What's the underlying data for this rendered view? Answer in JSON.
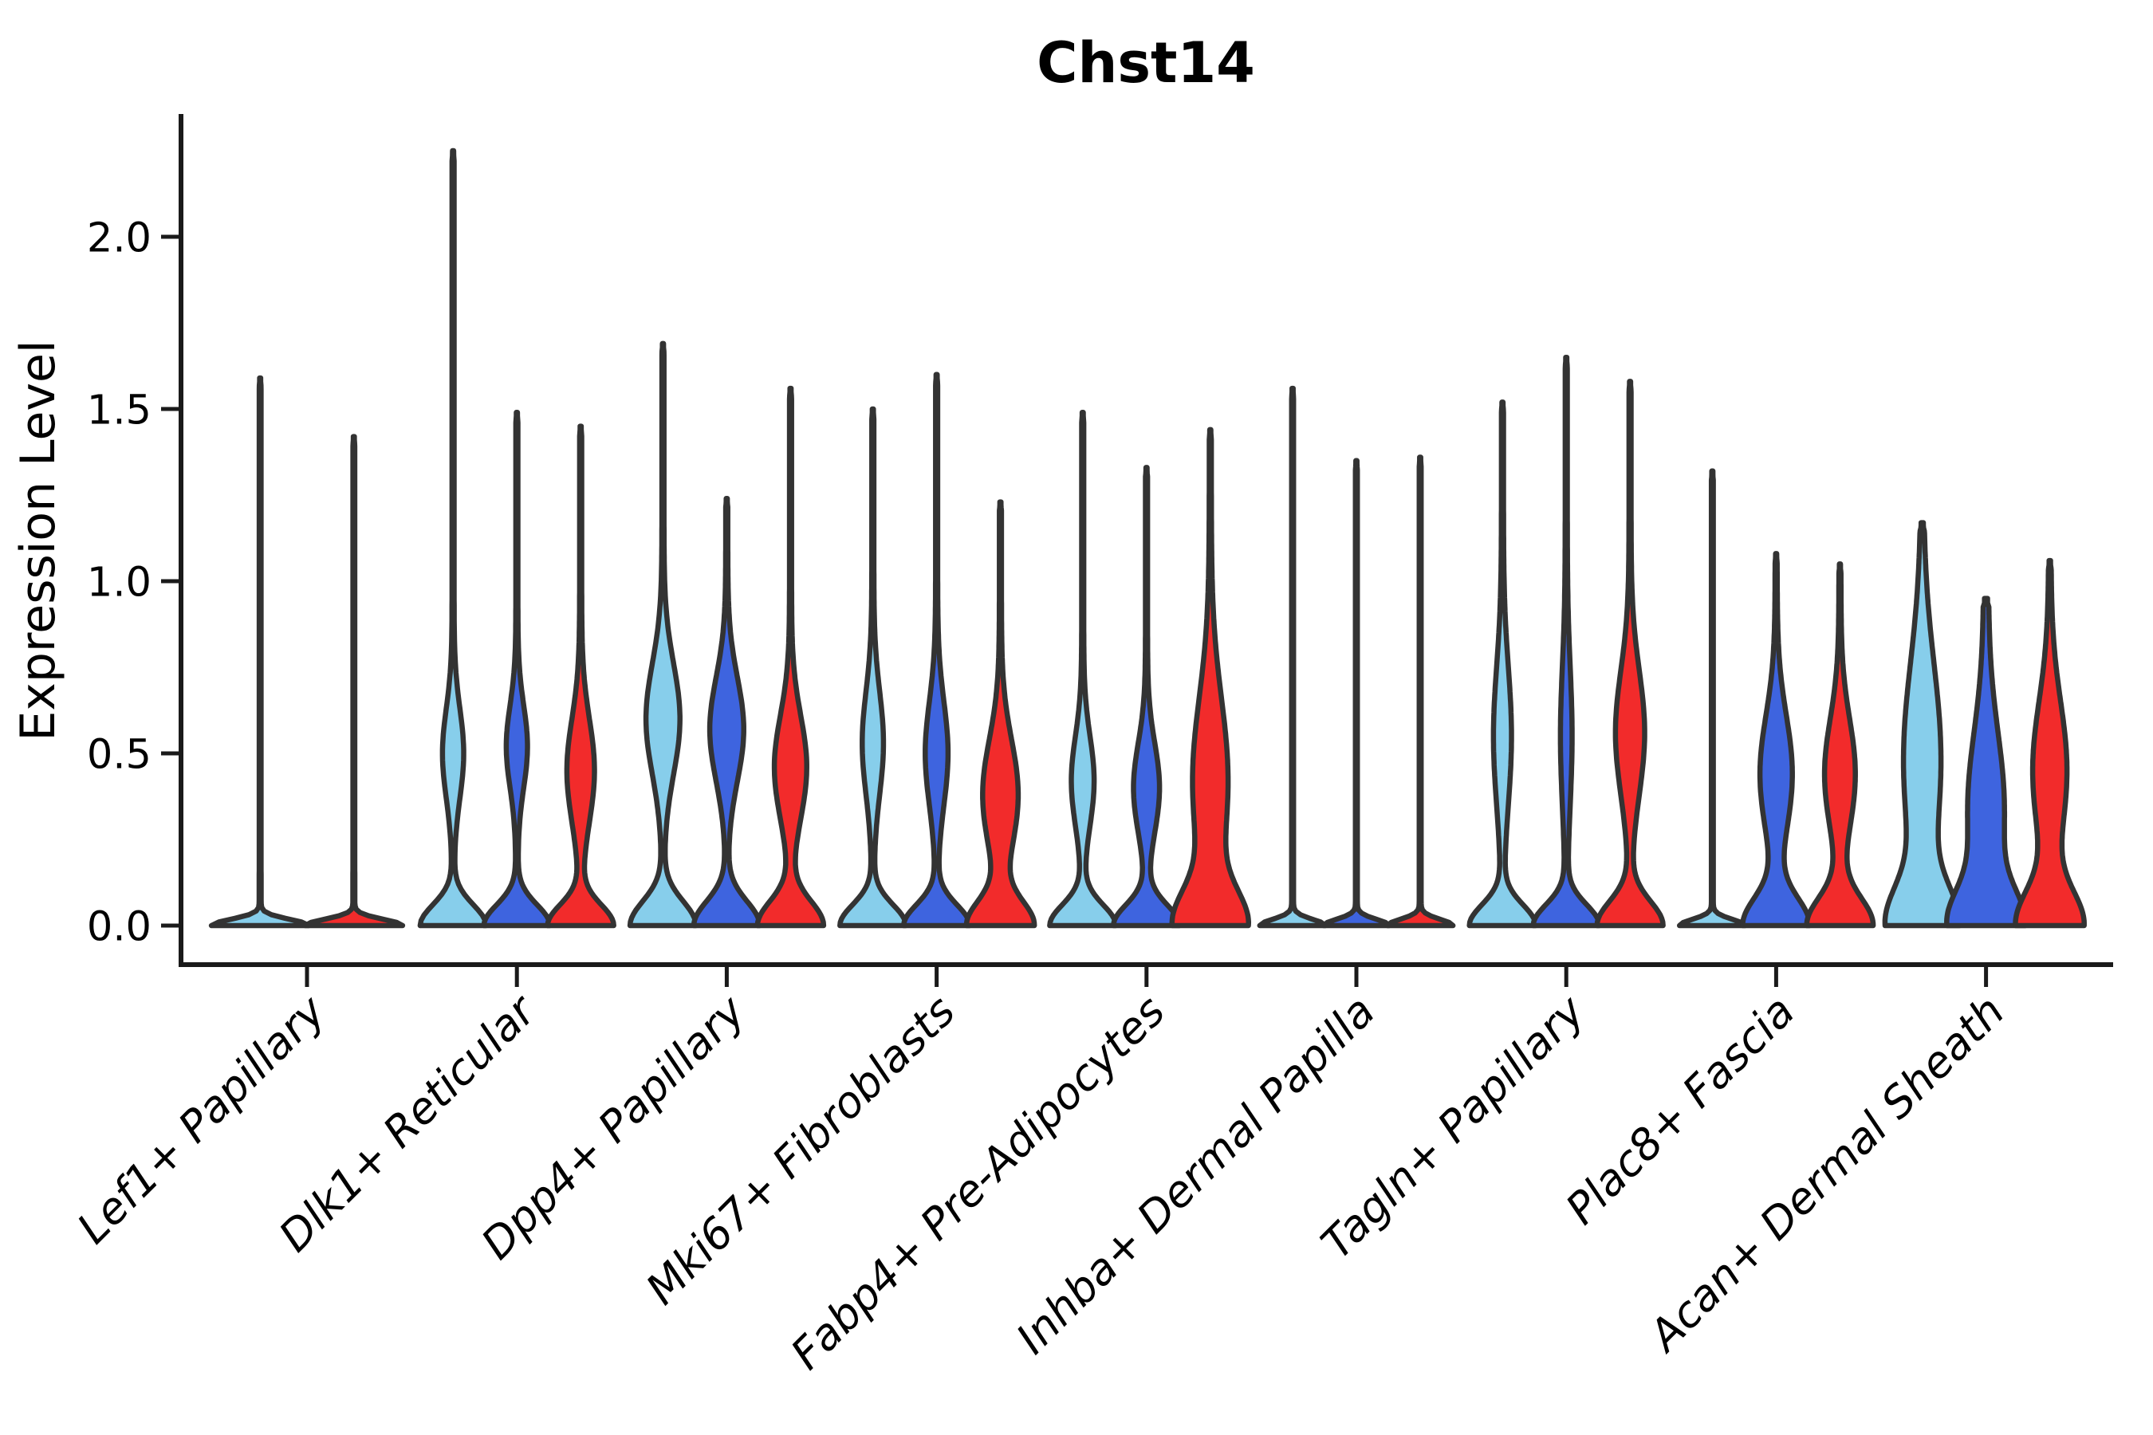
{
  "chart_data": {
    "type": "violin",
    "title": "Chst14",
    "xlabel": "",
    "ylabel": "Expression Level",
    "ylim": [
      -0.11,
      2.36
    ],
    "yticks": [
      0.0,
      0.5,
      1.0,
      1.5,
      2.0
    ],
    "ytick_labels": [
      "0.0",
      "0.5",
      "1.0",
      "1.5",
      "2.0"
    ],
    "grid": "off",
    "legend": "none",
    "axis_color": "#1a1a1a",
    "outline_color": "#333333",
    "background_color": "#ffffff",
    "categories": [
      "Lef1+ Papillary",
      "Dlk1+ Reticular",
      "Dpp4+ Papillary",
      "Mki67+ Fibroblasts",
      "Fabp4+ Pre-Adipocytes",
      "Inhba+ Dermal Papilla",
      "Tagln+ Papillary",
      "Plac8+ Fascia",
      "Acan+ Dermal Sheath"
    ],
    "series": [
      {
        "id": "light-blue",
        "color": "#87CEEB"
      },
      {
        "id": "dark-blue",
        "color": "#3E64DF"
      },
      {
        "id": "red",
        "color": "#F22B2B"
      }
    ],
    "groups": [
      {
        "category": "Lef1+ Papillary",
        "violins": [
          {
            "series": "light-blue",
            "max": 1.59,
            "offset": -58.75,
            "base_hw": 60,
            "base_sigma": 0.018,
            "tail_hw": 1.2,
            "bulge": null
          },
          {
            "series": "red",
            "max": 1.42,
            "offset": 58.75,
            "base_hw": 60,
            "base_sigma": 0.018,
            "tail_hw": 1.2,
            "bulge": null
          }
        ]
      },
      {
        "category": "Dlk1+ Reticular",
        "violins": [
          {
            "series": "light-blue",
            "max": 2.25,
            "offset": -80,
            "base_hw": 40,
            "base_sigma": 0.06,
            "tail_hw": 1.3,
            "bulge": {
              "mu": 0.5,
              "sigma": 0.13,
              "hw": 12
            }
          },
          {
            "series": "dark-blue",
            "max": 1.49,
            "offset": 0,
            "base_hw": 40,
            "base_sigma": 0.06,
            "tail_hw": 1.3,
            "bulge": {
              "mu": 0.52,
              "sigma": 0.12,
              "hw": 12
            }
          },
          {
            "series": "red",
            "max": 1.45,
            "offset": 80,
            "base_hw": 40,
            "base_sigma": 0.06,
            "tail_hw": 1.3,
            "bulge": {
              "mu": 0.45,
              "sigma": 0.15,
              "hw": 16
            }
          }
        ]
      },
      {
        "category": "Dpp4+ Papillary",
        "violins": [
          {
            "series": "light-blue",
            "max": 1.69,
            "offset": -80,
            "base_hw": 40,
            "base_sigma": 0.07,
            "tail_hw": 1.3,
            "bulge": {
              "mu": 0.6,
              "sigma": 0.16,
              "hw": 20
            }
          },
          {
            "series": "dark-blue",
            "max": 1.24,
            "offset": 0,
            "base_hw": 40,
            "base_sigma": 0.07,
            "tail_hw": 1.3,
            "bulge": {
              "mu": 0.57,
              "sigma": 0.15,
              "hw": 20
            }
          },
          {
            "series": "red",
            "max": 1.56,
            "offset": 80,
            "base_hw": 40,
            "base_sigma": 0.07,
            "tail_hw": 1.3,
            "bulge": {
              "mu": 0.46,
              "sigma": 0.15,
              "hw": 19
            }
          }
        ]
      },
      {
        "category": "Mki67+ Fibroblasts",
        "violins": [
          {
            "series": "light-blue",
            "max": 1.5,
            "offset": -80,
            "base_hw": 40,
            "base_sigma": 0.06,
            "tail_hw": 1.3,
            "bulge": {
              "mu": 0.53,
              "sigma": 0.15,
              "hw": 12
            }
          },
          {
            "series": "dark-blue",
            "max": 1.6,
            "offset": 0,
            "base_hw": 40,
            "base_sigma": 0.06,
            "tail_hw": 1.3,
            "bulge": {
              "mu": 0.5,
              "sigma": 0.15,
              "hw": 13
            }
          },
          {
            "series": "red",
            "max": 1.23,
            "offset": 80,
            "base_hw": 40,
            "base_sigma": 0.07,
            "tail_hw": 1.3,
            "bulge": {
              "mu": 0.38,
              "sigma": 0.16,
              "hw": 21
            }
          }
        ]
      },
      {
        "category": "Fabp4+ Pre-Adipocytes",
        "violins": [
          {
            "series": "light-blue",
            "max": 1.49,
            "offset": -80,
            "base_hw": 40,
            "base_sigma": 0.06,
            "tail_hw": 1.3,
            "bulge": {
              "mu": 0.42,
              "sigma": 0.13,
              "hw": 13
            }
          },
          {
            "series": "dark-blue",
            "max": 1.33,
            "offset": 0,
            "base_hw": 40,
            "base_sigma": 0.06,
            "tail_hw": 1.3,
            "bulge": {
              "mu": 0.4,
              "sigma": 0.13,
              "hw": 15
            }
          },
          {
            "series": "red",
            "max": 1.44,
            "offset": 80,
            "base_hw": 42,
            "base_sigma": 0.1,
            "tail_hw": 1.3,
            "bulge": {
              "mu": 0.42,
              "sigma": 0.24,
              "hw": 21
            }
          }
        ]
      },
      {
        "category": "Inhba+ Dermal Papilla",
        "violins": [
          {
            "series": "light-blue",
            "max": 1.56,
            "offset": -80,
            "base_hw": 40,
            "base_sigma": 0.018,
            "tail_hw": 1.2,
            "bulge": null
          },
          {
            "series": "dark-blue",
            "max": 1.35,
            "offset": 0,
            "base_hw": 40,
            "base_sigma": 0.018,
            "tail_hw": 1.2,
            "bulge": null
          },
          {
            "series": "red",
            "max": 1.36,
            "offset": 80,
            "base_hw": 40,
            "base_sigma": 0.018,
            "tail_hw": 1.2,
            "bulge": null
          }
        ]
      },
      {
        "category": "Tagln+ Papillary",
        "violins": [
          {
            "series": "light-blue",
            "max": 1.52,
            "offset": -80,
            "base_hw": 40,
            "base_sigma": 0.06,
            "tail_hw": 1.3,
            "bulge": {
              "mu": 0.55,
              "sigma": 0.2,
              "hw": 10
            }
          },
          {
            "series": "dark-blue",
            "max": 1.65,
            "offset": 0,
            "base_hw": 40,
            "base_sigma": 0.06,
            "tail_hw": 1.3,
            "bulge": {
              "mu": 0.55,
              "sigma": 0.2,
              "hw": 6
            }
          },
          {
            "series": "red",
            "max": 1.58,
            "offset": 80,
            "base_hw": 40,
            "base_sigma": 0.07,
            "tail_hw": 1.3,
            "bulge": {
              "mu": 0.56,
              "sigma": 0.18,
              "hw": 17
            }
          }
        ]
      },
      {
        "category": "Plac8+ Fascia",
        "violins": [
          {
            "series": "light-blue",
            "max": 1.32,
            "offset": -80,
            "base_hw": 40,
            "base_sigma": 0.018,
            "tail_hw": 1.2,
            "bulge": null
          },
          {
            "series": "dark-blue",
            "max": 1.08,
            "offset": 0,
            "base_hw": 40,
            "base_sigma": 0.08,
            "tail_hw": 1.3,
            "bulge": {
              "mu": 0.44,
              "sigma": 0.17,
              "hw": 19
            }
          },
          {
            "series": "red",
            "max": 1.05,
            "offset": 80,
            "base_hw": 40,
            "base_sigma": 0.08,
            "tail_hw": 1.3,
            "bulge": {
              "mu": 0.44,
              "sigma": 0.16,
              "hw": 18
            }
          }
        ]
      },
      {
        "category": "Acan+ Dermal Sheath",
        "violins": [
          {
            "series": "light-blue",
            "max": 1.17,
            "offset": -80,
            "base_hw": 40,
            "base_sigma": 0.11,
            "tail_hw": 1.5,
            "bulge": {
              "mu": 0.48,
              "sigma": 0.28,
              "hw": 22
            }
          },
          {
            "series": "dark-blue",
            "max": 0.95,
            "offset": 0,
            "base_hw": 40,
            "base_sigma": 0.1,
            "tail_hw": 3.0,
            "bulge": {
              "mu": 0.34,
              "sigma": 0.22,
              "hw": 20
            }
          },
          {
            "series": "red",
            "max": 1.06,
            "offset": 80,
            "base_hw": 40,
            "base_sigma": 0.1,
            "tail_hw": 1.5,
            "bulge": {
              "mu": 0.45,
              "sigma": 0.2,
              "hw": 20
            }
          }
        ]
      }
    ]
  }
}
